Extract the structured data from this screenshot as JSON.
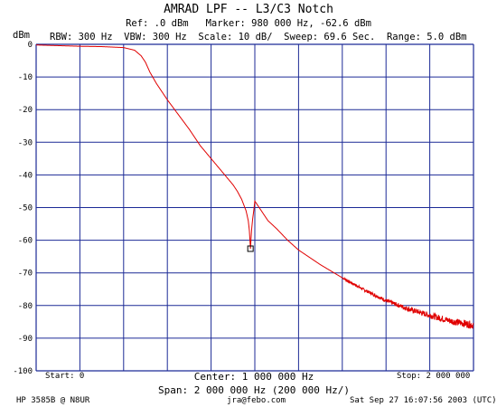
{
  "header": {
    "title": "AMRAD LPF -- L3/C3 Notch",
    "ref_line": "Ref: .0 dBm   Marker: 980 000 Hz, -62.6 dBm",
    "params_line": "RBW: 300 Hz  VBW: 300 Hz  Scale: 10 dB/  Sweep: 69.6 Sec.  Range: 5.0 dBm"
  },
  "footer": {
    "start": "Start: 0",
    "center": "Center: 1 000 000 Hz",
    "stop": "Stop: 2 000 000",
    "span": "Span: 2 000 000 Hz (200 000 Hz/)",
    "instrument": "HP 3585B @ N8UR",
    "email": "jra@febo.com",
    "date": "Sat Sep 27 16:07:56 2003 (UTC)"
  },
  "colors": {
    "grid": "#1c2a96",
    "trace": "#e00000",
    "marker": "#000000"
  },
  "chart_data": {
    "type": "line",
    "ylabel": "dBm",
    "ylim": [
      -100,
      0
    ],
    "yticks": [
      0,
      -10,
      -20,
      -30,
      -40,
      -50,
      -60,
      -70,
      -80,
      -90,
      -100
    ],
    "xlim": [
      0,
      2000000
    ],
    "x_divisions": 10,
    "grid": true,
    "series": [
      {
        "x": [
          0,
          100000,
          200000,
          300000,
          400000,
          450000,
          480000,
          500000,
          520000,
          550000,
          600000,
          650000,
          700000,
          750000,
          800000,
          850000,
          900000,
          920000,
          940000,
          960000,
          970000,
          975000,
          980000,
          985000,
          990000,
          995000,
          1000000,
          1020000,
          1040000,
          1060000,
          1100000,
          1150000,
          1200000,
          1300000,
          1400000,
          1500000,
          1600000,
          1700000,
          1800000,
          1900000,
          2000000
        ],
        "y": [
          -0.2,
          -0.4,
          -0.6,
          -0.7,
          -1.0,
          -1.8,
          -3.5,
          -5.5,
          -8.5,
          -12,
          -17,
          -21.5,
          -26,
          -31,
          -35,
          -39,
          -43,
          -45,
          -47.5,
          -51,
          -54,
          -57,
          -62.6,
          -57,
          -53.5,
          -51,
          -48,
          -50,
          -52,
          -54,
          -56.5,
          -60,
          -63,
          -67.5,
          -71.5,
          -75.2,
          -78.5,
          -81,
          -83,
          -84.8,
          -86
        ]
      }
    ],
    "marker": {
      "x": 980000,
      "y": -62.6
    }
  }
}
